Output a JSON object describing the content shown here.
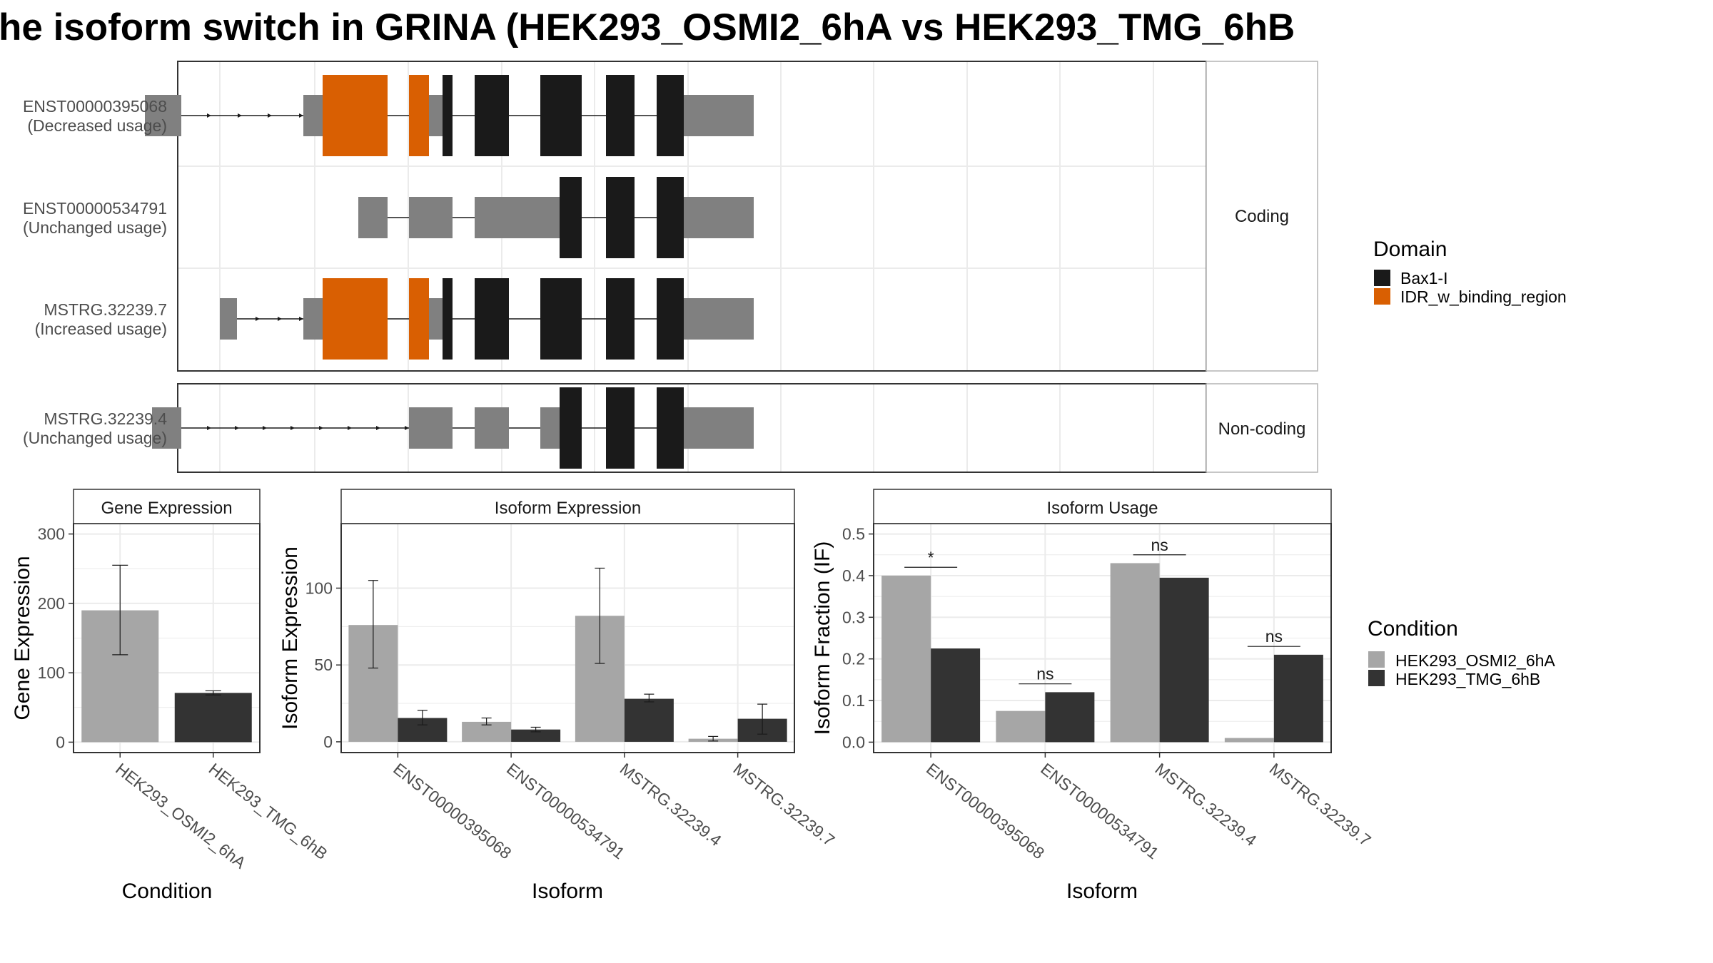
{
  "title": "he isoform switch in GRINA (HEK293_OSMI2_6hA vs HEK293_TMG_6hB",
  "colors": {
    "utr": "#808080",
    "bax": "#1a1a1a",
    "idr": "#d95f02",
    "cond_a": "#a6a6a6",
    "cond_b": "#333333",
    "grid": "#ebebeb",
    "strip": "#ffffff"
  },
  "structure": {
    "facets": {
      "coding": "Coding",
      "noncoding": "Non-coding"
    },
    "transcripts": [
      {
        "id": "ENST00000395068",
        "usage": "(Decreased usage)",
        "facet": "coding",
        "utr": [
          [
            203,
            254
          ],
          [
            425,
            452
          ],
          [
            600,
            621
          ],
          [
            956,
            1056
          ]
        ],
        "bax": [
          [
            620,
            634
          ],
          [
            665,
            713
          ],
          [
            757,
            815
          ],
          [
            849,
            889
          ],
          [
            920,
            958
          ]
        ],
        "idr": [
          [
            452,
            543
          ],
          [
            573,
            601
          ]
        ],
        "line": [
          254,
          956
        ],
        "arrows": [
          296,
          339,
          381,
          425
        ]
      },
      {
        "id": "ENST00000534791",
        "usage": "(Unchanged usage)",
        "facet": "coding",
        "utr": [
          [
            502,
            543
          ],
          [
            573,
            634
          ],
          [
            665,
            784
          ],
          [
            956,
            1056
          ]
        ],
        "bax": [
          [
            784,
            815
          ],
          [
            849,
            889
          ],
          [
            920,
            958
          ]
        ],
        "idr": [],
        "line": [
          543,
          956
        ],
        "arrows": []
      },
      {
        "id": "MSTRG.32239.7",
        "usage": "(Increased usage)",
        "facet": "coding",
        "utr": [
          [
            308,
            332
          ],
          [
            425,
            452
          ],
          [
            600,
            621
          ],
          [
            956,
            1056
          ]
        ],
        "bax": [
          [
            620,
            634
          ],
          [
            665,
            713
          ],
          [
            757,
            815
          ],
          [
            849,
            889
          ],
          [
            920,
            958
          ]
        ],
        "idr": [
          [
            452,
            543
          ],
          [
            573,
            601
          ]
        ],
        "line": [
          332,
          956
        ],
        "arrows": [
          364,
          395,
          425
        ]
      },
      {
        "id": "MSTRG.32239.4",
        "usage": "(Unchanged usage)",
        "facet": "noncoding",
        "utr": [
          [
            213,
            254
          ],
          [
            573,
            634
          ],
          [
            665,
            713
          ],
          [
            757,
            784
          ],
          [
            956,
            1056
          ]
        ],
        "bax": [
          [
            784,
            815
          ],
          [
            849,
            889
          ],
          [
            920,
            958
          ]
        ],
        "idr": [],
        "line": [
          254,
          956
        ],
        "arrows": [
          296,
          335,
          374,
          413,
          453,
          493,
          533,
          573
        ]
      }
    ]
  },
  "legend_domain": {
    "title": "Domain",
    "items": [
      {
        "label": "Bax1-I",
        "color": "#1a1a1a"
      },
      {
        "label": "IDR_w_binding_region",
        "color": "#d95f02"
      }
    ]
  },
  "legend_condition": {
    "title": "Condition",
    "items": [
      {
        "label": "HEK293_OSMI2_6hA",
        "color": "#a6a6a6"
      },
      {
        "label": "HEK293_TMG_6hB",
        "color": "#333333"
      }
    ]
  },
  "chart_data": [
    {
      "type": "bar",
      "title": "Gene Expression",
      "xlabel": "Condition",
      "ylabel": "Gene Expression",
      "ylim": [
        -15,
        315
      ],
      "yticks": [
        0,
        100,
        200,
        300
      ],
      "categories": [
        "HEK293_OSMI2_6hA",
        "HEK293_TMG_6hB"
      ],
      "values": [
        190,
        71
      ],
      "errors": [
        [
          126,
          255
        ],
        [
          68,
          74
        ]
      ],
      "grid": true
    },
    {
      "type": "bar",
      "title": "Isoform Expression",
      "xlabel": "Isoform",
      "ylabel": "Isoform Expression",
      "ylim": [
        -7,
        142
      ],
      "yticks": [
        0,
        50,
        100
      ],
      "categories": [
        "ENST00000395068",
        "ENST00000534791",
        "MSTRG.32239.4",
        "MSTRG.32239.7"
      ],
      "series": [
        {
          "name": "HEK293_OSMI2_6hA",
          "values": [
            76,
            13,
            82,
            2
          ],
          "errors": [
            [
              48,
              105
            ],
            [
              11,
              15.5
            ],
            [
              51,
              113
            ],
            [
              0.5,
              3.5
            ]
          ]
        },
        {
          "name": "HEK293_TMG_6hB",
          "values": [
            15.5,
            8,
            28,
            15
          ],
          "errors": [
            [
              11,
              20.5
            ],
            [
              6.5,
              9.5
            ],
            [
              26,
              31
            ],
            [
              5,
              24.5
            ]
          ]
        }
      ],
      "grid": true
    },
    {
      "type": "bar",
      "title": "Isoform Usage",
      "xlabel": "Isoform",
      "ylabel": "Isoform Fraction (IF)",
      "ylim": [
        -0.025,
        0.525
      ],
      "yticks": [
        0.0,
        0.1,
        0.2,
        0.3,
        0.4,
        0.5
      ],
      "ytick_labels": [
        "0.0",
        "0.1",
        "0.2",
        "0.3",
        "0.4",
        "0.5"
      ],
      "categories": [
        "ENST00000395068",
        "ENST00000534791",
        "MSTRG.32239.4",
        "MSTRG.32239.7"
      ],
      "series": [
        {
          "name": "HEK293_OSMI2_6hA",
          "values": [
            0.4,
            0.075,
            0.43,
            0.01
          ]
        },
        {
          "name": "HEK293_TMG_6hB",
          "values": [
            0.225,
            0.12,
            0.395,
            0.21
          ]
        }
      ],
      "significance": [
        "*",
        "ns",
        "ns",
        "ns"
      ],
      "significance_y": [
        0.42,
        0.14,
        0.45,
        0.23
      ],
      "grid": true
    }
  ]
}
